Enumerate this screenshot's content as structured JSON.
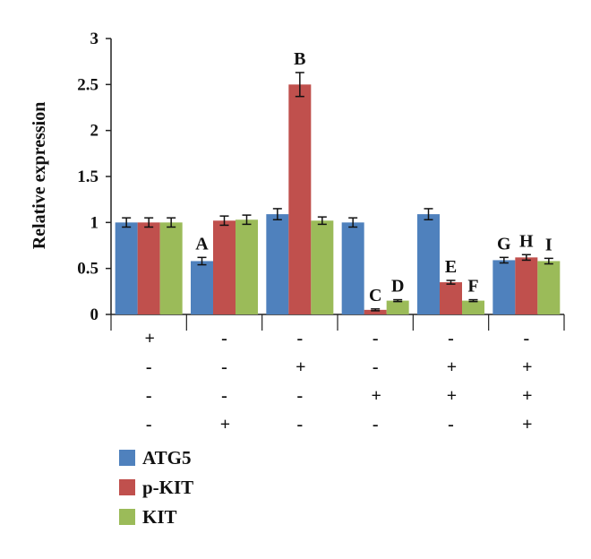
{
  "chart_data": {
    "type": "bar",
    "title": "",
    "ylabel": "Relative expression",
    "xlabel": "",
    "ylim": [
      0,
      3
    ],
    "yticks": [
      "0",
      "0.5",
      "1",
      "1.5",
      "2",
      "2.5",
      "3"
    ],
    "groups": 6,
    "series": [
      {
        "name": "ATG5",
        "color": "#4f81bd",
        "values": [
          1.0,
          0.58,
          1.09,
          1.0,
          1.09,
          0.59
        ],
        "errors": [
          0.05,
          0.04,
          0.06,
          0.05,
          0.06,
          0.03
        ]
      },
      {
        "name": "p-KIT",
        "color": "#c0504d",
        "values": [
          1.0,
          1.02,
          2.5,
          0.05,
          0.35,
          0.62
        ],
        "errors": [
          0.05,
          0.05,
          0.13,
          0.01,
          0.02,
          0.03
        ]
      },
      {
        "name": "KIT",
        "color": "#9bbb59",
        "values": [
          1.0,
          1.03,
          1.02,
          0.15,
          0.15,
          0.58
        ],
        "errors": [
          0.05,
          0.05,
          0.04,
          0.01,
          0.01,
          0.03
        ]
      }
    ],
    "annotations": [
      {
        "text": "A",
        "group": 1,
        "series": 0
      },
      {
        "text": "B",
        "group": 2,
        "series": 1
      },
      {
        "text": "C",
        "group": 3,
        "series": 1
      },
      {
        "text": "D",
        "group": 3,
        "series": 2
      },
      {
        "text": "E",
        "group": 4,
        "series": 1
      },
      {
        "text": "F",
        "group": 4,
        "series": 2
      },
      {
        "text": "G",
        "group": 5,
        "series": 0
      },
      {
        "text": "H",
        "group": 5,
        "series": 1
      },
      {
        "text": "I",
        "group": 5,
        "series": 2
      }
    ],
    "condition_rows": [
      [
        "+",
        "-",
        "-",
        "-",
        "-",
        "-"
      ],
      [
        "-",
        "-",
        "+",
        "-",
        "+",
        "+"
      ],
      [
        "-",
        "-",
        "-",
        "+",
        "+",
        "+"
      ],
      [
        "-",
        "+",
        "-",
        "-",
        "-",
        "+"
      ]
    ],
    "grid": false,
    "legend_position": "bottom-left"
  }
}
